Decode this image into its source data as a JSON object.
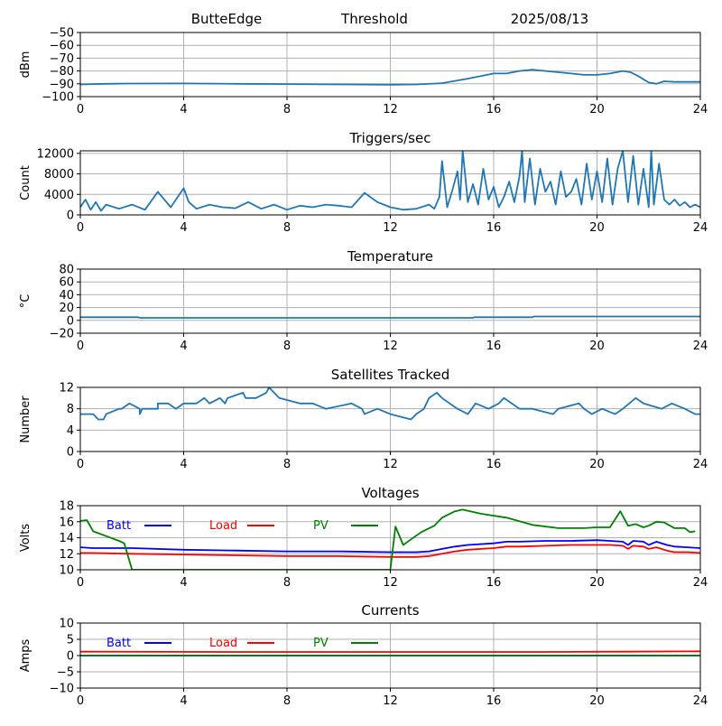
{
  "header": {
    "station": "ButteEdge",
    "mode": "Threshold",
    "date": "2025/08/13"
  },
  "colors": {
    "series_default": "#1f77b4",
    "batt": "#0000ff",
    "load": "#ff0000",
    "pv": "#008000",
    "grid": "#b0b0b0",
    "axis": "#000000"
  },
  "chart_data": [
    {
      "id": "threshold",
      "type": "line",
      "title": "",
      "xlabel": "",
      "ylabel": "dBm",
      "xlim": [
        0,
        24
      ],
      "ylim": [
        -100,
        -50
      ],
      "xticks": [
        0,
        4,
        8,
        12,
        16,
        20,
        24
      ],
      "yticks": [
        -100,
        -90,
        -80,
        -70,
        -60,
        -50
      ],
      "ytick_labels": [
        "−100",
        "−90",
        "−80",
        "−70",
        "−60",
        "−50"
      ],
      "grid": true,
      "series": [
        {
          "color": "series_default",
          "x": [
            0,
            1,
            2,
            4,
            6,
            8,
            10,
            12,
            13,
            14,
            15,
            15.5,
            16,
            16.5,
            17,
            17.5,
            18,
            18.5,
            19,
            19.5,
            20,
            20.5,
            21,
            21.3,
            21.6,
            22,
            22.3,
            22.6,
            23,
            23.5,
            24
          ],
          "y": [
            -90.5,
            -90,
            -89.8,
            -89.7,
            -90,
            -90.2,
            -90.5,
            -90.7,
            -90.5,
            -89.5,
            -86,
            -84,
            -82,
            -82,
            -80,
            -79,
            -80,
            -81,
            -82,
            -83,
            -83,
            -82,
            -80,
            -81,
            -84,
            -89,
            -90,
            -88,
            -88.5,
            -88.5,
            -88.5
          ]
        }
      ]
    },
    {
      "id": "triggers",
      "type": "line",
      "title": "Triggers/sec",
      "xlabel": "",
      "ylabel": "Count",
      "xlim": [
        0,
        24
      ],
      "ylim": [
        0,
        12500
      ],
      "xticks": [
        0,
        4,
        8,
        12,
        16,
        20,
        24
      ],
      "yticks": [
        0,
        4000,
        8000,
        12000
      ],
      "ytick_labels": [
        "0",
        "4000",
        "8000",
        "12000"
      ],
      "grid": true,
      "series": [
        {
          "color": "series_default",
          "x": [
            0,
            0.2,
            0.4,
            0.6,
            0.8,
            1,
            1.5,
            2,
            2.5,
            3,
            3.5,
            4,
            4.2,
            4.5,
            5,
            5.5,
            6,
            6.5,
            7,
            7.5,
            8,
            8.5,
            9,
            9.5,
            10,
            10.5,
            11,
            11.5,
            12,
            12.5,
            13,
            13.5,
            13.7,
            13.9,
            14,
            14.2,
            14.4,
            14.6,
            14.7,
            14.8,
            15,
            15.2,
            15.4,
            15.6,
            15.8,
            16,
            16.2,
            16.4,
            16.6,
            16.8,
            17,
            17.1,
            17.2,
            17.4,
            17.6,
            17.8,
            18,
            18.2,
            18.4,
            18.6,
            18.8,
            19,
            19.2,
            19.4,
            19.6,
            19.8,
            20,
            20.2,
            20.4,
            20.6,
            20.8,
            21,
            21.2,
            21.4,
            21.6,
            21.8,
            22,
            22.1,
            22.2,
            22.4,
            22.6,
            22.8,
            23,
            23.2,
            23.4,
            23.6,
            23.8,
            24
          ],
          "y": [
            1500,
            3000,
            1000,
            2500,
            800,
            2000,
            1200,
            2000,
            1000,
            4500,
            1500,
            5200,
            2500,
            1200,
            2000,
            1500,
            1300,
            2500,
            1200,
            2000,
            1000,
            1800,
            1500,
            2000,
            1800,
            1500,
            4300,
            2500,
            1500,
            1000,
            1200,
            2000,
            1200,
            3500,
            10500,
            1500,
            4800,
            8500,
            3000,
            12500,
            2500,
            6000,
            2000,
            9000,
            3000,
            5500,
            1500,
            3500,
            6500,
            2500,
            7500,
            12500,
            2500,
            11000,
            2000,
            9000,
            4500,
            6500,
            2000,
            8500,
            3500,
            4500,
            7000,
            2000,
            10000,
            3000,
            8500,
            2500,
            11000,
            2000,
            9000,
            12500,
            2500,
            11500,
            2000,
            9000,
            1500,
            12500,
            2000,
            10000,
            3000,
            2000,
            3000,
            1800,
            2500,
            1500,
            2000,
            1500
          ]
        }
      ]
    },
    {
      "id": "temperature",
      "type": "line",
      "title": "Temperature",
      "xlabel": "",
      "ylabel": "°C",
      "xlim": [
        0,
        24
      ],
      "ylim": [
        -20,
        80
      ],
      "xticks": [
        0,
        4,
        8,
        12,
        16,
        20,
        24
      ],
      "yticks": [
        -20,
        0,
        20,
        40,
        60,
        80
      ],
      "ytick_labels": [
        "−20",
        "0",
        "20",
        "40",
        "60",
        "80"
      ],
      "grid": true,
      "series": [
        {
          "color": "series_default",
          "x": [
            0,
            2.25,
            2.3,
            15.2,
            15.25,
            17.5,
            17.55,
            24
          ],
          "y": [
            5,
            5,
            4,
            4,
            5,
            5,
            6,
            6
          ]
        }
      ]
    },
    {
      "id": "satellites",
      "type": "line",
      "title": "Satellites Tracked",
      "xlabel": "",
      "ylabel": "Number",
      "xlim": [
        0,
        24
      ],
      "ylim": [
        0,
        12
      ],
      "xticks": [
        0,
        4,
        8,
        12,
        16,
        20,
        24
      ],
      "yticks": [
        0,
        4,
        8,
        12
      ],
      "ytick_labels": [
        "0",
        "4",
        "8",
        "12"
      ],
      "grid": true,
      "series": [
        {
          "color": "series_default",
          "x": [
            0,
            0.5,
            0.7,
            0.9,
            1,
            1.5,
            1.5,
            1.6,
            1.9,
            2.3,
            2.3,
            2.4,
            3,
            3,
            3.4,
            3.7,
            4,
            4.5,
            4.8,
            5,
            5.4,
            5.6,
            5.7,
            6.3,
            6.4,
            6.8,
            7.2,
            7.3,
            7.5,
            7.7,
            8.5,
            9,
            9.5,
            10.5,
            10.9,
            11,
            11.5,
            12,
            12.8,
            13,
            13.3,
            13.5,
            13.8,
            14,
            14.3,
            14.6,
            15,
            15.3,
            15.8,
            16.2,
            16.4,
            16.7,
            17,
            17.5,
            18.3,
            18.5,
            19.3,
            19.5,
            19.8,
            20.2,
            20.7,
            21,
            21.5,
            21.8,
            22.5,
            22.9,
            23.4,
            23.8,
            24
          ],
          "y": [
            7,
            7,
            6,
            6,
            7,
            8,
            8,
            8,
            9,
            8,
            7,
            8,
            8,
            9,
            9,
            8,
            9,
            9,
            10,
            9,
            10,
            9,
            10,
            11,
            10,
            10,
            11,
            12,
            11,
            10,
            9,
            9,
            8,
            9,
            8,
            7,
            8,
            7,
            6,
            7,
            8,
            10,
            11,
            10,
            9,
            8,
            7,
            9,
            8,
            9,
            10,
            9,
            8,
            8,
            7,
            8,
            9,
            8,
            7,
            8,
            7,
            8,
            10,
            9,
            8,
            9,
            8,
            7,
            7
          ]
        }
      ]
    },
    {
      "id": "voltages",
      "type": "line",
      "title": "Voltages",
      "xlabel": "",
      "ylabel": "Volts",
      "xlim": [
        0,
        24
      ],
      "ylim": [
        10,
        18
      ],
      "xticks": [
        0,
        4,
        8,
        12,
        16,
        20,
        24
      ],
      "yticks": [
        10,
        12,
        14,
        16,
        18
      ],
      "ytick_labels": [
        "10",
        "12",
        "14",
        "16",
        "18"
      ],
      "grid": true,
      "legend": {
        "placement": "top-left, horizontal"
      },
      "series": [
        {
          "name": "Batt",
          "color": "batt",
          "x": [
            0,
            0.5,
            2,
            4,
            6,
            8,
            10,
            12,
            13,
            13.5,
            14,
            14.5,
            15,
            16,
            16.5,
            17,
            18,
            19,
            20,
            20.5,
            21,
            21.2,
            21.4,
            21.8,
            22,
            22.3,
            22.7,
            23,
            23.5,
            24
          ],
          "y": [
            12.8,
            12.7,
            12.7,
            12.5,
            12.4,
            12.3,
            12.3,
            12.2,
            12.2,
            12.3,
            12.6,
            12.9,
            13.1,
            13.3,
            13.5,
            13.5,
            13.6,
            13.6,
            13.7,
            13.6,
            13.5,
            13.1,
            13.6,
            13.5,
            13.1,
            13.5,
            13.1,
            12.9,
            12.8,
            12.7
          ]
        },
        {
          "name": "Load",
          "color": "load",
          "x": [
            0,
            0.5,
            2,
            4,
            6,
            8,
            10,
            12,
            13,
            13.5,
            14,
            14.5,
            15,
            16,
            16.5,
            17,
            18,
            19,
            20,
            20.5,
            21,
            21.2,
            21.4,
            21.8,
            22,
            22.3,
            22.7,
            23,
            23.5,
            24
          ],
          "y": [
            12.1,
            12.1,
            12,
            11.9,
            11.8,
            11.7,
            11.7,
            11.6,
            11.6,
            11.7,
            12,
            12.3,
            12.5,
            12.7,
            12.9,
            12.9,
            13,
            13.1,
            13.1,
            13.1,
            13,
            12.6,
            13,
            12.9,
            12.6,
            12.8,
            12.4,
            12.2,
            12.2,
            12.1
          ]
        },
        {
          "name": "PV",
          "color": "pv",
          "x": [
            0,
            0.25,
            0.5,
            1,
            1.5,
            1.7,
            2.0,
            12.0,
            12.2,
            12.5,
            12.8,
            13.2,
            13.7,
            14.0,
            14.5,
            14.8,
            15.5,
            16.5,
            17.5,
            18.5,
            19.5,
            20.0,
            20.5,
            20.9,
            21.2,
            21.5,
            21.8,
            22.0,
            22.3,
            22.6,
            23.0,
            23.4,
            23.6,
            23.8
          ],
          "y": [
            16.1,
            16.2,
            14.8,
            14.2,
            13.6,
            13.3,
            10,
            10,
            15.4,
            13.1,
            13.8,
            14.7,
            15.5,
            16.5,
            17.3,
            17.5,
            17.0,
            16.5,
            15.6,
            15.2,
            15.2,
            15.3,
            15.3,
            17.3,
            15.5,
            15.7,
            15.3,
            15.5,
            16.0,
            15.9,
            15.2,
            15.2,
            14.7,
            14.8
          ]
        }
      ]
    },
    {
      "id": "currents",
      "type": "line",
      "title": "Currents",
      "xlabel": "",
      "ylabel": "Amps",
      "xlim": [
        0,
        24
      ],
      "ylim": [
        -10,
        10
      ],
      "xticks": [
        0,
        4,
        8,
        12,
        16,
        20,
        24
      ],
      "yticks": [
        -10,
        -5,
        0,
        5,
        10
      ],
      "ytick_labels": [
        "−10",
        "−5",
        "0",
        "5",
        "10"
      ],
      "grid": true,
      "legend": {
        "placement": "top-left, horizontal"
      },
      "series": [
        {
          "name": "Batt",
          "color": "batt",
          "x": [
            0,
            24
          ],
          "y": [
            0,
            0
          ]
        },
        {
          "name": "Load",
          "color": "load",
          "x": [
            0,
            6,
            12,
            18,
            21,
            24
          ],
          "y": [
            1.2,
            1.1,
            1.1,
            1.1,
            1.2,
            1.3
          ]
        },
        {
          "name": "PV",
          "color": "pv",
          "x": [
            0,
            24
          ],
          "y": [
            0,
            0
          ]
        }
      ]
    }
  ]
}
